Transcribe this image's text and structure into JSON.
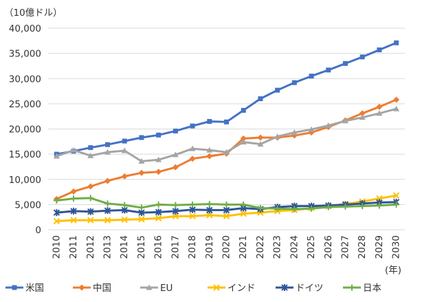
{
  "chart_data": {
    "type": "line",
    "unit_label": "（10億ドル）",
    "x_unit_label": "(年)",
    "x": [
      "2010",
      "2011",
      "2012",
      "2013",
      "2014",
      "2015",
      "2016",
      "2017",
      "2018",
      "2019",
      "2020",
      "2021",
      "2022",
      "2023",
      "2024",
      "2025",
      "2026",
      "2027",
      "2028",
      "2029",
      "2030"
    ],
    "yticks": [
      "0",
      "5,000",
      "10,000",
      "15,000",
      "20,000",
      "25,000",
      "30,000",
      "35,000",
      "40,000"
    ],
    "ylim": [
      0,
      40000
    ],
    "grid": true,
    "legend_position": "bottom",
    "series": [
      {
        "name": "米国",
        "color": "#4472c4",
        "marker": "square",
        "values": [
          15000,
          15600,
          16300,
          16900,
          17600,
          18300,
          18800,
          19600,
          20600,
          21500,
          21400,
          23700,
          26000,
          27700,
          29200,
          30500,
          31700,
          33000,
          34300,
          35700,
          37100
        ]
      },
      {
        "name": "中国",
        "color": "#ed7d31",
        "marker": "diamond",
        "values": [
          6100,
          7600,
          8600,
          9700,
          10600,
          11300,
          11500,
          12400,
          14100,
          14600,
          15100,
          18100,
          18300,
          18300,
          18700,
          19300,
          20400,
          21700,
          23100,
          24400,
          25800
        ]
      },
      {
        "name": "EU",
        "color": "#a5a5a5",
        "marker": "triangle",
        "values": [
          14600,
          15800,
          14700,
          15400,
          15700,
          13600,
          13900,
          14900,
          16100,
          15800,
          15400,
          17400,
          17000,
          18500,
          19300,
          19900,
          20700,
          21600,
          22300,
          23100,
          24000
        ]
      },
      {
        "name": "インド",
        "color": "#ffc000",
        "marker": "x",
        "values": [
          1700,
          1900,
          1900,
          1900,
          2000,
          2100,
          2300,
          2700,
          2700,
          2900,
          2700,
          3200,
          3400,
          3700,
          3900,
          4300,
          4700,
          5100,
          5600,
          6200,
          6800
        ]
      },
      {
        "name": "ドイツ",
        "color": "#2e5597",
        "marker": "star",
        "values": [
          3400,
          3700,
          3600,
          3800,
          3900,
          3400,
          3500,
          3700,
          4000,
          3900,
          3900,
          4300,
          4100,
          4500,
          4700,
          4700,
          4800,
          5000,
          5200,
          5400,
          5500
        ]
      },
      {
        "name": "日本",
        "color": "#70ad47",
        "marker": "plus",
        "values": [
          5800,
          6200,
          6300,
          5200,
          4900,
          4400,
          5000,
          4900,
          5000,
          5100,
          5000,
          5000,
          4300,
          4200,
          4100,
          4200,
          4500,
          4600,
          4700,
          4800,
          5000
        ]
      }
    ]
  }
}
